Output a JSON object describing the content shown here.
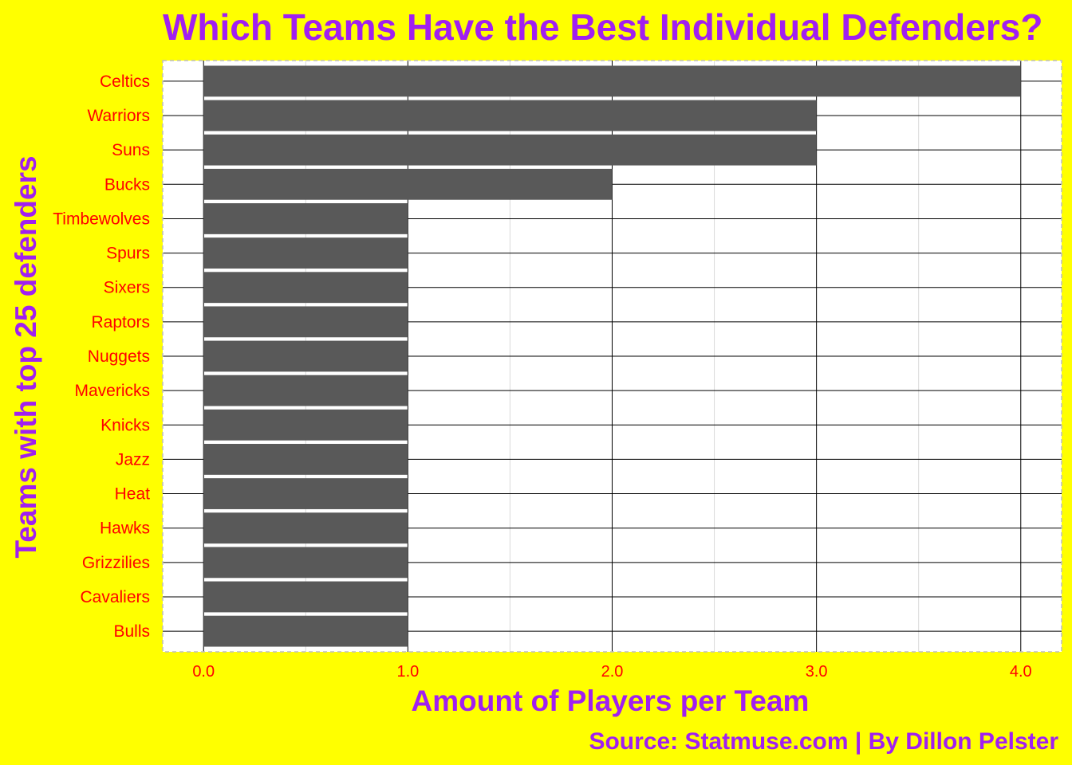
{
  "chart_data": {
    "type": "bar",
    "orientation": "horizontal",
    "title": "Which Teams Have the Best Individual Defenders?",
    "xlabel": "Amount of Players per Team",
    "ylabel": "Teams with top 25 defenders",
    "caption": "Source: Statmuse.com | By Dillon Pelster",
    "categories": [
      "Celtics",
      "Warriors",
      "Suns",
      "Bucks",
      "Timbewolves",
      "Spurs",
      "Sixers",
      "Raptors",
      "Nuggets",
      "Mavericks",
      "Knicks",
      "Jazz",
      "Heat",
      "Hawks",
      "Grizzilies",
      "Cavaliers",
      "Bulls"
    ],
    "values": [
      4,
      3,
      3,
      2,
      1,
      1,
      1,
      1,
      1,
      1,
      1,
      1,
      1,
      1,
      1,
      1,
      1
    ],
    "xlim": [
      -0.2,
      4.2
    ],
    "xticks": [
      0,
      1,
      2,
      3,
      4
    ],
    "xtick_labels": [
      "0.0",
      "1.0",
      "2.0",
      "3.0",
      "4.0"
    ],
    "grid": true,
    "legend": "none"
  },
  "colors": {
    "background": "#ffff00",
    "panel": "#ffffff",
    "bar": "#595959",
    "title": "#a020f0",
    "tick_labels": "#ff0000",
    "grid_major": "#000000",
    "grid_minor": "#d9d9d9",
    "panel_border": "#bebebe"
  }
}
